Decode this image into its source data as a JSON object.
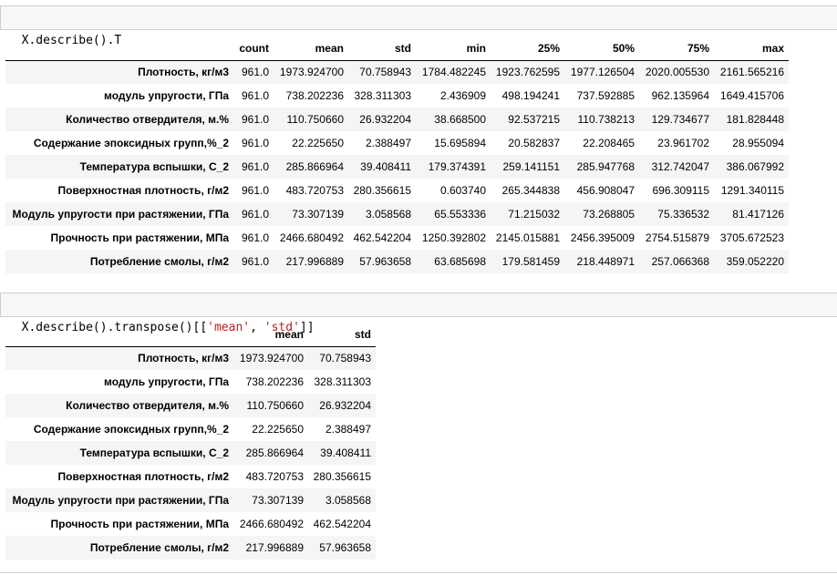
{
  "cell1": {
    "code_prefix": "X.describe().T"
  },
  "table1": {
    "columns": [
      "count",
      "mean",
      "std",
      "min",
      "25%",
      "50%",
      "75%",
      "max"
    ],
    "rows": [
      {
        "label": "Плотность, кг/м3",
        "values": [
          "961.0",
          "1973.924700",
          "70.758943",
          "1784.482245",
          "1923.762595",
          "1977.126504",
          "2020.005530",
          "2161.565216"
        ]
      },
      {
        "label": "модуль упругости, ГПа",
        "values": [
          "961.0",
          "738.202236",
          "328.311303",
          "2.436909",
          "498.194241",
          "737.592885",
          "962.135964",
          "1649.415706"
        ]
      },
      {
        "label": "Количество отвердителя, м.%",
        "values": [
          "961.0",
          "110.750660",
          "26.932204",
          "38.668500",
          "92.537215",
          "110.738213",
          "129.734677",
          "181.828448"
        ]
      },
      {
        "label": "Содержание эпоксидных групп,%_2",
        "values": [
          "961.0",
          "22.225650",
          "2.388497",
          "15.695894",
          "20.582837",
          "22.208465",
          "23.961702",
          "28.955094"
        ]
      },
      {
        "label": "Температура вспышки, С_2",
        "values": [
          "961.0",
          "285.866964",
          "39.408411",
          "179.374391",
          "259.141151",
          "285.947768",
          "312.742047",
          "386.067992"
        ]
      },
      {
        "label": "Поверхностная плотность, г/м2",
        "values": [
          "961.0",
          "483.720753",
          "280.356615",
          "0.603740",
          "265.344838",
          "456.908047",
          "696.309115",
          "1291.340115"
        ]
      },
      {
        "label": "Модуль упругости при растяжении, ГПа",
        "values": [
          "961.0",
          "73.307139",
          "3.058568",
          "65.553336",
          "71.215032",
          "73.268805",
          "75.336532",
          "81.417126"
        ]
      },
      {
        "label": "Прочность при растяжении, МПа",
        "values": [
          "961.0",
          "2466.680492",
          "462.542204",
          "1250.392802",
          "2145.015881",
          "2456.395009",
          "2754.515879",
          "3705.672523"
        ]
      },
      {
        "label": "Потребление смолы, г/м2",
        "values": [
          "961.0",
          "217.996889",
          "57.963658",
          "63.685698",
          "179.581459",
          "218.448971",
          "257.066368",
          "359.052220"
        ]
      }
    ]
  },
  "cell2": {
    "code_prefix": "X.describe().transpose()[[",
    "str1": "'mean'",
    "sep": ", ",
    "str2": "'std'",
    "code_suffix": "]]"
  },
  "table2": {
    "columns": [
      "mean",
      "std"
    ],
    "rows": [
      {
        "label": "Плотность, кг/м3",
        "values": [
          "1973.924700",
          "70.758943"
        ]
      },
      {
        "label": "модуль упругости, ГПа",
        "values": [
          "738.202236",
          "328.311303"
        ]
      },
      {
        "label": "Количество отвердителя, м.%",
        "values": [
          "110.750660",
          "26.932204"
        ]
      },
      {
        "label": "Содержание эпоксидных групп,%_2",
        "values": [
          "22.225650",
          "2.388497"
        ]
      },
      {
        "label": "Температура вспышки, С_2",
        "values": [
          "285.866964",
          "39.408411"
        ]
      },
      {
        "label": "Поверхностная плотность, г/м2",
        "values": [
          "483.720753",
          "280.356615"
        ]
      },
      {
        "label": "Модуль упругости при растяжении, ГПа",
        "values": [
          "73.307139",
          "3.058568"
        ]
      },
      {
        "label": "Прочность при растяжении, МПа",
        "values": [
          "2466.680492",
          "462.542204"
        ]
      },
      {
        "label": "Потребление смолы, г/м2",
        "values": [
          "217.996889",
          "57.963658"
        ]
      }
    ]
  }
}
